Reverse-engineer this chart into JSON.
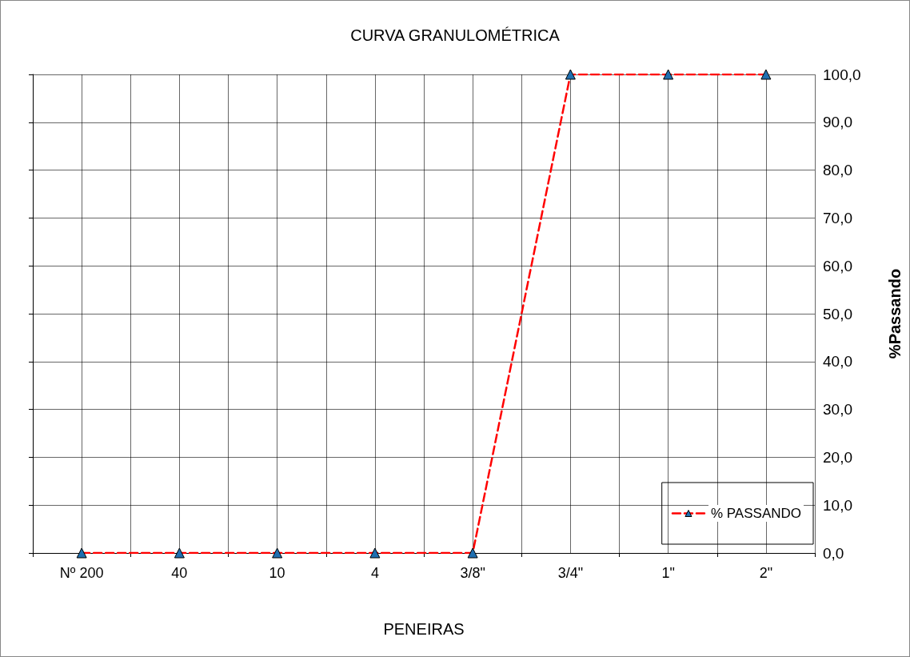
{
  "chart_data": {
    "type": "line",
    "title": "CURVA GRANULOMÉTRICA",
    "xlabel": "PENEIRAS",
    "ylabel": "%Passando",
    "categories": [
      "Nº 200",
      "40",
      "10",
      "4",
      "3/8\"",
      "3/4\"",
      "1\"",
      "2\""
    ],
    "series": [
      {
        "name": "% PASSANDO",
        "color": "#ff0000",
        "values": [
          0,
          0,
          0,
          0,
          0,
          100,
          100,
          100
        ]
      }
    ],
    "ylim": [
      0,
      100
    ],
    "yticks": [
      {
        "value": 0,
        "label": "0,0"
      },
      {
        "value": 10,
        "label": "10,0"
      },
      {
        "value": 20,
        "label": "20,0"
      },
      {
        "value": 30,
        "label": "30,0"
      },
      {
        "value": 40,
        "label": "40,0"
      },
      {
        "value": 50,
        "label": "50,0"
      },
      {
        "value": 60,
        "label": "60,0"
      },
      {
        "value": 70,
        "label": "70,0"
      },
      {
        "value": 80,
        "label": "80,0"
      },
      {
        "value": 90,
        "label": "90,0"
      },
      {
        "value": 100,
        "label": "100,0"
      }
    ],
    "grid": true,
    "legend": "bottom right",
    "marker": "triangle",
    "line_style": "dashed"
  }
}
